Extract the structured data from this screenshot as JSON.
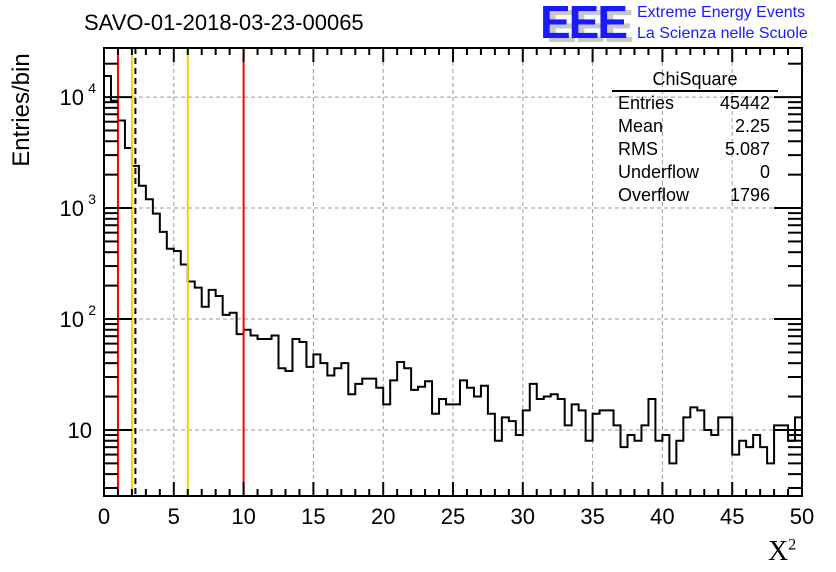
{
  "header": {
    "title": "SAVO-01-2018-03-23-00065",
    "logo_text": "EEE",
    "logo_line1": "Extreme Energy Events",
    "logo_line2": "La Scienza nelle Scuole"
  },
  "stats": {
    "title": "ChiSquare",
    "rows": [
      {
        "label": "Entries",
        "value": "45442"
      },
      {
        "label": "Mean",
        "value": "2.25"
      },
      {
        "label": "RMS",
        "value": "5.087"
      },
      {
        "label": "Underflow",
        "value": "0"
      },
      {
        "label": "Overflow",
        "value": "1796"
      }
    ]
  },
  "chart_data": {
    "type": "bar",
    "histogram": true,
    "title": "SAVO-01-2018-03-23-00065",
    "xlabel": "X",
    "xlabel_sup": "2",
    "ylabel": "Entries/bin",
    "xlim": [
      0,
      50
    ],
    "ylim": [
      2.54,
      27700
    ],
    "yscale": "log",
    "grid": true,
    "bin_width": 0.5,
    "x_ticks": [
      "0",
      "5",
      "10",
      "15",
      "20",
      "25",
      "30",
      "35",
      "40",
      "45",
      "50"
    ],
    "y_ticks": [
      {
        "value": 10,
        "base": "10",
        "exp": ""
      },
      {
        "value": 100,
        "base": "10",
        "exp": "2"
      },
      {
        "value": 1000,
        "base": "10",
        "exp": "3"
      },
      {
        "value": 10000,
        "base": "10",
        "exp": "4"
      }
    ],
    "values": [
      15500,
      9270,
      6160,
      3480,
      2400,
      1590,
      1200,
      890,
      610,
      430,
      410,
      310,
      218,
      192,
      129,
      183,
      161,
      109,
      114,
      73,
      80,
      71,
      66,
      66,
      71,
      36,
      34,
      66,
      62,
      37,
      48,
      40,
      31,
      36,
      40,
      21,
      26,
      29,
      29,
      24,
      17,
      28,
      41,
      36,
      23,
      24.5,
      27.5,
      14,
      19,
      17,
      17,
      28,
      24,
      20,
      25,
      14,
      8,
      13,
      12,
      9,
      15,
      26,
      19,
      20,
      21,
      19,
      11,
      17,
      15,
      8,
      14,
      15,
      15,
      11,
      7,
      9,
      8,
      11,
      19,
      8,
      9,
      5,
      8,
      13,
      16,
      15,
      10,
      9,
      13,
      13,
      6,
      8,
      7,
      9,
      7,
      5,
      11,
      11,
      8,
      13
    ],
    "vertical_lines": [
      {
        "x": 1,
        "color": "#ff0000",
        "style": "solid"
      },
      {
        "x": 2,
        "color": "#ffcc00",
        "style": "solid"
      },
      {
        "x": 2.25,
        "color": "#000000",
        "style": "dashed"
      },
      {
        "x": 6,
        "color": "#ffcc00",
        "style": "solid"
      },
      {
        "x": 10,
        "color": "#ff0000",
        "style": "solid"
      }
    ]
  }
}
